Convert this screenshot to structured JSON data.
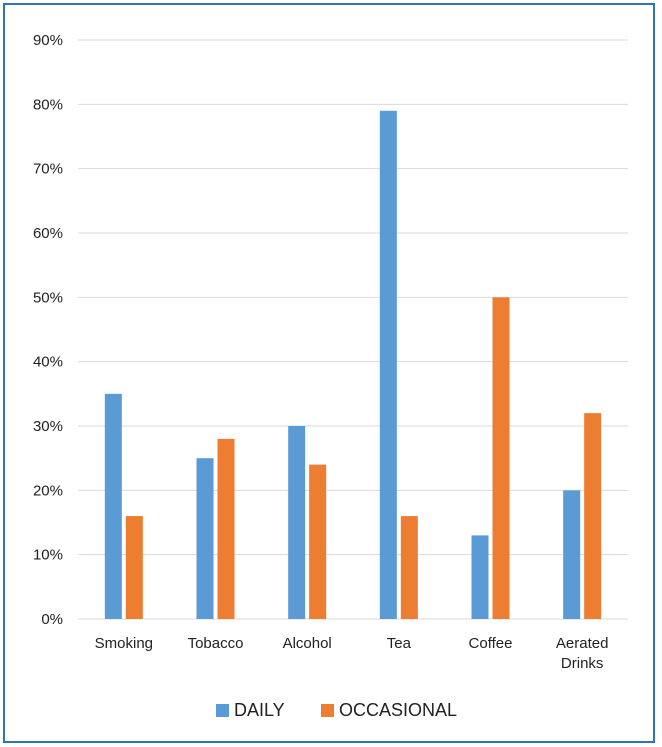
{
  "chart_data": {
    "type": "bar",
    "categories": [
      [
        "Smoking"
      ],
      [
        "Tobacco"
      ],
      [
        "Alcohol"
      ],
      [
        "Tea"
      ],
      [
        "Coffee"
      ],
      [
        "Aerated",
        "Drinks"
      ]
    ],
    "series": [
      {
        "name": "DAILY",
        "color": "#5b9bd5",
        "values": [
          35,
          25,
          30,
          79,
          13,
          20
        ]
      },
      {
        "name": "OCCASIONAL",
        "color": "#ed7d31",
        "values": [
          16,
          28,
          24,
          16,
          50,
          32
        ]
      }
    ],
    "yticks": [
      "0%",
      "10%",
      "20%",
      "30%",
      "40%",
      "50%",
      "60%",
      "70%",
      "80%",
      "90%"
    ],
    "ylim": [
      0,
      90
    ],
    "grid": true,
    "legend_position": "bottom",
    "frame_color": "#2e75b6",
    "grid_color": "#d9d9d9"
  }
}
